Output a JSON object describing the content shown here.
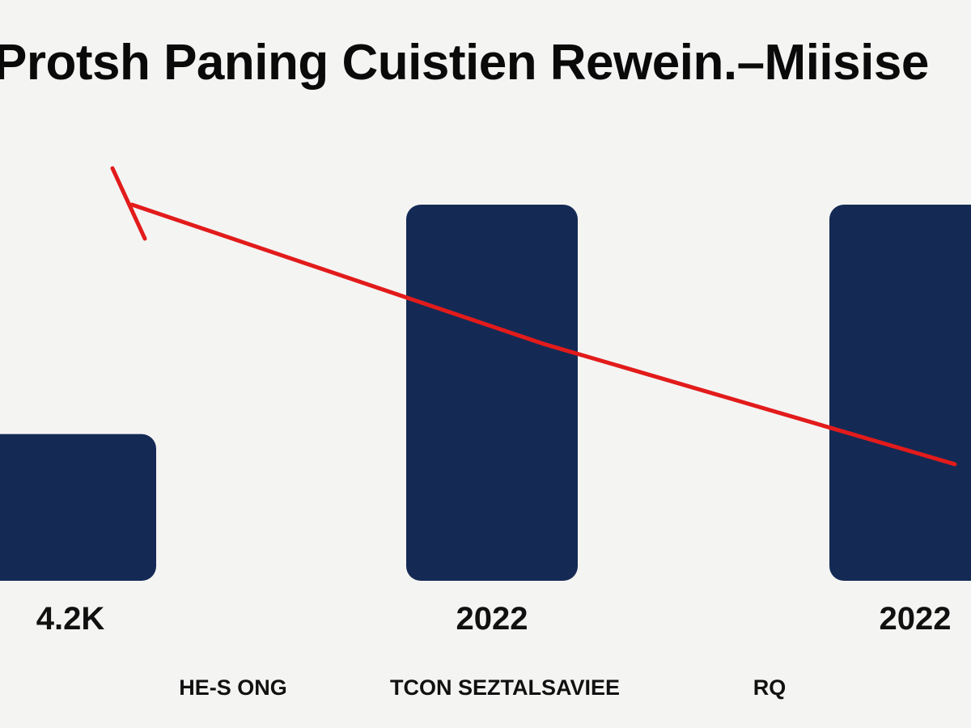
{
  "chart_data": {
    "type": "bar",
    "title": "Protsh Paning Cuistien Rewein.–Miisise",
    "categories": [
      "4.2K",
      "2022",
      "2022"
    ],
    "footer_labels": [
      "HE-S ONG",
      "TCON SEZTALSAVIEE",
      "RQ"
    ],
    "ylim": [
      0,
      100
    ],
    "series": [
      {
        "type": "bar",
        "values": [
          39,
          100,
          100
        ]
      },
      {
        "type": "line",
        "values": [
          100,
          63,
          31
        ]
      }
    ],
    "grid": false,
    "legend": "none",
    "colors": {
      "bar": "#142a55",
      "line": "#e21b1b",
      "background": "#f4f4f3"
    }
  }
}
